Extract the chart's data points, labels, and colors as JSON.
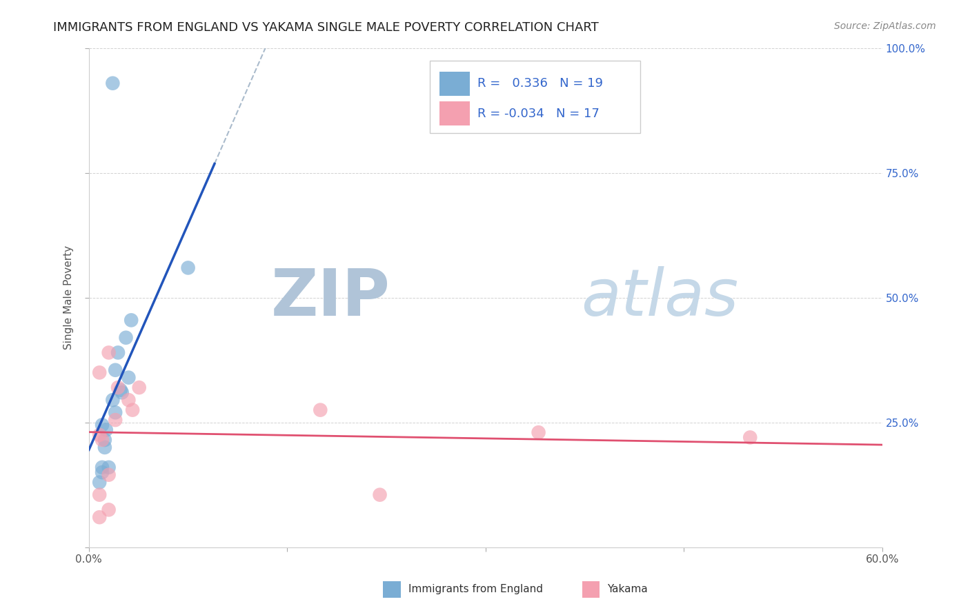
{
  "title": "IMMIGRANTS FROM ENGLAND VS YAKAMA SINGLE MALE POVERTY CORRELATION CHART",
  "source": "Source: ZipAtlas.com",
  "ylabel": "Single Male Poverty",
  "xlim": [
    0.0,
    0.6
  ],
  "ylim": [
    0.0,
    1.0
  ],
  "R_blue": 0.336,
  "N_blue": 19,
  "R_pink": -0.034,
  "N_pink": 17,
  "blue_scatter_x": [
    0.013,
    0.02,
    0.022,
    0.028,
    0.03,
    0.018,
    0.025,
    0.032,
    0.02,
    0.024,
    0.01,
    0.012,
    0.008,
    0.015,
    0.075,
    0.01,
    0.012,
    0.018,
    0.01
  ],
  "blue_scatter_y": [
    0.235,
    0.355,
    0.39,
    0.42,
    0.34,
    0.295,
    0.31,
    0.455,
    0.27,
    0.315,
    0.245,
    0.215,
    0.13,
    0.16,
    0.56,
    0.16,
    0.2,
    0.93,
    0.15
  ],
  "pink_scatter_x": [
    0.008,
    0.015,
    0.022,
    0.03,
    0.033,
    0.038,
    0.008,
    0.01,
    0.02,
    0.008,
    0.015,
    0.175,
    0.008,
    0.015,
    0.22,
    0.34,
    0.5
  ],
  "pink_scatter_y": [
    0.35,
    0.39,
    0.32,
    0.295,
    0.275,
    0.32,
    0.225,
    0.215,
    0.255,
    0.105,
    0.145,
    0.275,
    0.06,
    0.075,
    0.105,
    0.23,
    0.22
  ],
  "blue_color": "#7aadd4",
  "pink_color": "#f4a0b0",
  "blue_line_color": "#2255bb",
  "pink_line_color": "#e05070",
  "diag_color": "#aabbcc",
  "background_color": "#ffffff",
  "grid_color": "#cccccc",
  "title_fontsize": 13,
  "axis_label_fontsize": 11,
  "tick_fontsize": 11,
  "legend_fontsize": 13,
  "watermark_zip_color": "#b8c8d8",
  "watermark_atlas_color": "#c8d8e8"
}
